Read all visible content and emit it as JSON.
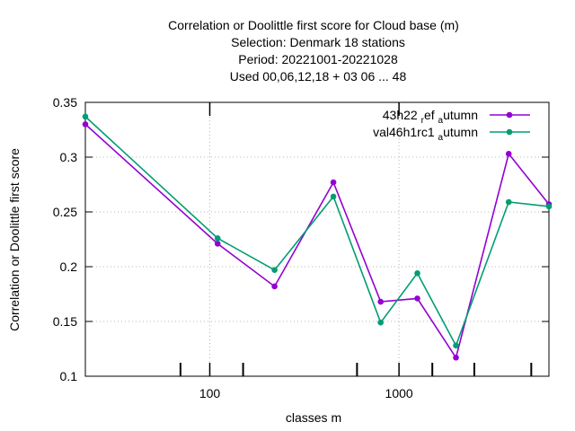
{
  "chart_data": {
    "type": "line",
    "title_lines": [
      "Correlation or Doolittle first score  for Cloud base (m)",
      "Selection: Denmark     18 stations",
      "Period: 20221001-20221028",
      "Used  00,06,12,18  + 03 06 ... 48"
    ],
    "xlabel": "classes m",
    "ylabel": "Correlation or Doolittle first score",
    "xscale": "log",
    "xlim": [
      22,
      6200
    ],
    "ylim": [
      0.1,
      0.35
    ],
    "x_ticks": [
      {
        "value": 100,
        "label": "100"
      },
      {
        "value": 1000,
        "label": "1000"
      }
    ],
    "y_ticks": [
      {
        "value": 0.1,
        "label": "0.1"
      },
      {
        "value": 0.15,
        "label": "0.15"
      },
      {
        "value": 0.2,
        "label": "0.2"
      },
      {
        "value": 0.25,
        "label": "0.25"
      },
      {
        "value": 0.3,
        "label": "0.3"
      },
      {
        "value": 0.35,
        "label": "0.35"
      }
    ],
    "minor_x_ticks": [
      70,
      150,
      600,
      1500,
      2500,
      5000
    ],
    "grid": true,
    "legend_position": "top-right",
    "series": [
      {
        "name": "43h22_ref_autumn",
        "legend_parts": [
          "43h22",
          "ref",
          "a",
          "utumn"
        ],
        "color": "#9400d3",
        "x": [
          22,
          110,
          220,
          450,
          800,
          1250,
          2000,
          3800,
          6200
        ],
        "y": [
          0.33,
          0.221,
          0.182,
          0.277,
          0.168,
          0.171,
          0.117,
          0.303,
          0.257
        ]
      },
      {
        "name": "val46h1rc1_autumn",
        "legend_parts": [
          "val46h1rc1",
          "a",
          "utumn"
        ],
        "color": "#009e73",
        "x": [
          22,
          110,
          220,
          450,
          800,
          1250,
          2000,
          3800,
          6200
        ],
        "y": [
          0.337,
          0.226,
          0.197,
          0.264,
          0.149,
          0.194,
          0.128,
          0.259,
          0.255
        ]
      }
    ]
  }
}
